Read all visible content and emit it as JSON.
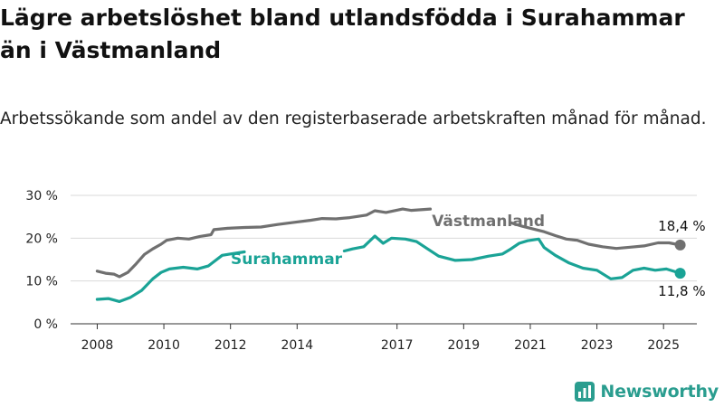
{
  "title": "Lägre arbetslöshet bland utlandsfödda i Surahammar än i Västmanland",
  "subtitle": "Arbetssökande som andel av den registerbaserade arbetskraften månad för månad.",
  "brand": {
    "name": "Newsworthy",
    "color": "#2a9d8f"
  },
  "chart_data": {
    "type": "line",
    "title": "Lägre arbetslöshet bland utlandsfödda i Surahammar än i Västmanland",
    "subtitle": "Arbetssökande som andel av den registerbaserade arbetskraften månad för månad.",
    "xlabel": "",
    "ylabel": "",
    "x_ticks": [
      "2008",
      "2010",
      "2012",
      "2014",
      "2017",
      "2019",
      "2021",
      "2023",
      "2025"
    ],
    "y_ticks": [
      "0 %",
      "10 %",
      "20 %",
      "30 %"
    ],
    "ylim": [
      0,
      30
    ],
    "xlim": [
      "2008-01",
      "2025-07"
    ],
    "grid": true,
    "legend": "none",
    "series": [
      {
        "name": "Västmanland",
        "color": "#707070",
        "end_label": "18,4 %",
        "points": [
          [
            "2008-01",
            12.3
          ],
          [
            "2008-04",
            11.8
          ],
          [
            "2008-07",
            11.6
          ],
          [
            "2008-09",
            11.0
          ],
          [
            "2008-12",
            12.0
          ],
          [
            "2009-03",
            14.0
          ],
          [
            "2009-06",
            16.2
          ],
          [
            "2009-09",
            17.5
          ],
          [
            "2009-12",
            18.6
          ],
          [
            "2010-02",
            19.5
          ],
          [
            "2010-06",
            20.0
          ],
          [
            "2010-10",
            19.8
          ],
          [
            "2011-02",
            20.4
          ],
          [
            "2011-06",
            20.8
          ],
          [
            "2011-07",
            22.0
          ],
          [
            "2011-12",
            22.3
          ],
          [
            "2012-06",
            22.5
          ],
          [
            "2012-12",
            22.6
          ],
          [
            "2013-06",
            23.2
          ],
          [
            "2013-12",
            23.7
          ],
          [
            "2014-06",
            24.2
          ],
          [
            "2014-10",
            24.6
          ],
          [
            "2015-03",
            24.5
          ],
          [
            "2015-08",
            24.8
          ],
          [
            "2016-02",
            25.4
          ],
          [
            "2016-05",
            26.4
          ],
          [
            "2016-09",
            26.0
          ],
          [
            "2017-03",
            26.8
          ],
          [
            "2017-06",
            26.5
          ],
          [
            "2018-01",
            26.8
          ]
        ],
        "points_after_gap": [
          [
            "2020-06",
            23.6
          ],
          [
            "2020-10",
            22.8
          ],
          [
            "2021-06",
            21.5
          ],
          [
            "2021-10",
            20.6
          ],
          [
            "2022-02",
            19.8
          ],
          [
            "2022-06",
            19.5
          ],
          [
            "2022-10",
            18.6
          ],
          [
            "2023-03",
            18.0
          ],
          [
            "2023-08",
            17.6
          ],
          [
            "2024-01",
            17.9
          ],
          [
            "2024-06",
            18.2
          ],
          [
            "2024-11",
            18.9
          ],
          [
            "2025-03",
            18.9
          ],
          [
            "2025-07",
            18.4
          ]
        ]
      },
      {
        "name": "Surahammar",
        "color": "#1aa396",
        "end_label": "11,8 %",
        "points": [
          [
            "2008-01",
            5.7
          ],
          [
            "2008-05",
            5.9
          ],
          [
            "2008-09",
            5.2
          ],
          [
            "2009-01",
            6.2
          ],
          [
            "2009-05",
            7.8
          ],
          [
            "2009-09",
            10.5
          ],
          [
            "2009-12",
            12.0
          ],
          [
            "2010-03",
            12.8
          ],
          [
            "2010-08",
            13.2
          ],
          [
            "2011-01",
            12.8
          ],
          [
            "2011-05",
            13.5
          ],
          [
            "2011-07",
            14.5
          ],
          [
            "2011-10",
            16.0
          ],
          [
            "2012-01",
            16.3
          ],
          [
            "2012-06",
            16.8
          ]
        ],
        "points_after_gap": [
          [
            "2015-06",
            17.0
          ],
          [
            "2015-09",
            17.5
          ],
          [
            "2016-01",
            18.0
          ],
          [
            "2016-05",
            20.5
          ],
          [
            "2016-08",
            18.8
          ],
          [
            "2016-11",
            20.0
          ],
          [
            "2017-04",
            19.8
          ],
          [
            "2017-08",
            19.2
          ],
          [
            "2017-12",
            17.5
          ],
          [
            "2018-04",
            15.8
          ],
          [
            "2018-10",
            14.8
          ],
          [
            "2019-04",
            15.0
          ],
          [
            "2019-10",
            15.8
          ],
          [
            "2020-03",
            16.3
          ],
          [
            "2020-06",
            17.5
          ],
          [
            "2020-09",
            18.8
          ],
          [
            "2020-12",
            19.4
          ],
          [
            "2021-04",
            19.8
          ],
          [
            "2021-06",
            17.8
          ],
          [
            "2021-10",
            16.0
          ],
          [
            "2022-03",
            14.2
          ],
          [
            "2022-08",
            13.0
          ],
          [
            "2023-01",
            12.5
          ],
          [
            "2023-06",
            10.5
          ],
          [
            "2023-10",
            10.8
          ],
          [
            "2024-02",
            12.5
          ],
          [
            "2024-06",
            13.0
          ],
          [
            "2024-10",
            12.5
          ],
          [
            "2025-02",
            12.8
          ],
          [
            "2025-07",
            11.8
          ]
        ]
      }
    ]
  }
}
